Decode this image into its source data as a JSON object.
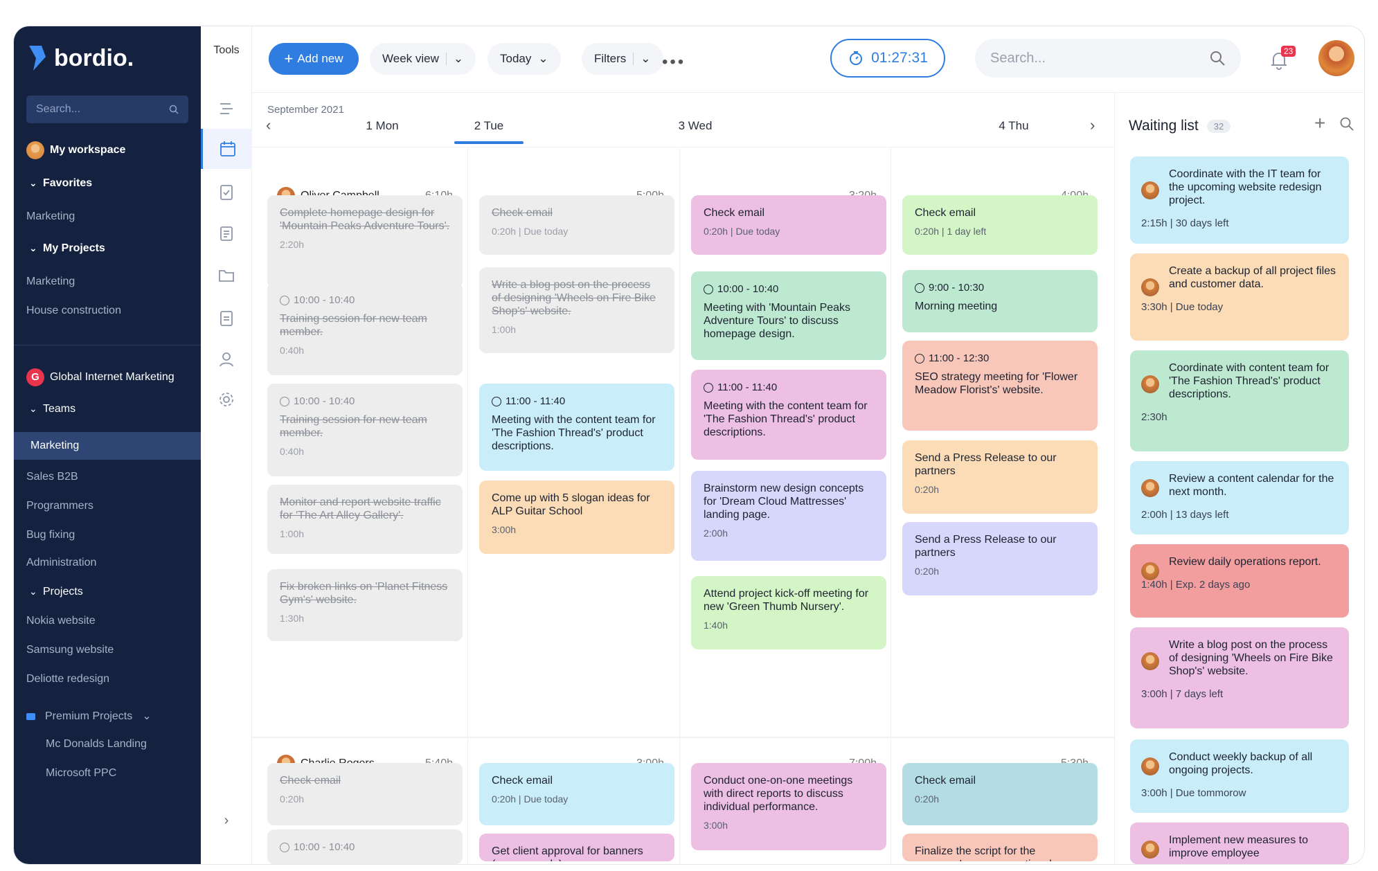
{
  "sidebar": {
    "logo": "bordio.",
    "search_placeholder": "Search...",
    "workspace": "My workspace",
    "favorites": "Favorites",
    "fav_items": [
      "Marketing"
    ],
    "my_projects": "My Projects",
    "project_items": [
      "Marketing",
      "House construction"
    ],
    "org": "Global Internet Marketing",
    "org_letter": "G",
    "teams": "Teams",
    "team_selected": "Marketing",
    "team_items": [
      "Sales B2B",
      "Programmers",
      "Bug fixing",
      "Administration"
    ],
    "projects": "Projects",
    "proj_items": [
      "Nokia website",
      "Samsung website",
      "Deliotte redesign"
    ],
    "premium": "Premium Projects",
    "premium_items": [
      "Mc Donalds Landing",
      "Microsoft PPC"
    ]
  },
  "tools": {
    "title": "Tools"
  },
  "topbar": {
    "add_new": "Add new",
    "view": "Week view",
    "today": "Today",
    "filters": "Filters",
    "timer": "01:27:31",
    "search_placeholder": "Search...",
    "notifications": "23"
  },
  "calendar": {
    "month": "September 2021",
    "days": [
      "1 Mon",
      "2 Tue",
      "3 Wed",
      "4 Thu"
    ],
    "selected_day": "2 Tue",
    "people": [
      {
        "name": "Oliver Campbell",
        "totals": [
          "6:10h",
          "5:00h",
          "3:20h",
          "4:00h"
        ]
      },
      {
        "name": "Charlie Rogers",
        "totals": [
          "5:40h",
          "3:00h",
          "7:00h",
          "5:30h"
        ]
      }
    ],
    "cards": [
      {
        "col": 0,
        "title": "Complete homepage design for 'Mountain Peaks Adventure Tours'.",
        "meta": "2:20h",
        "done": true
      },
      {
        "col": 0,
        "time": "10:00 - 10:40",
        "title": "Training session for new team member.",
        "meta": "0:40h",
        "done": true
      },
      {
        "col": 0,
        "time": "10:00 - 10:40",
        "title": "Training session for new team member.",
        "meta": "0:40h",
        "done": true
      },
      {
        "col": 0,
        "title": "Monitor and report website traffic for 'The Art Alley Gallery'.",
        "meta": "1:00h",
        "done": true
      },
      {
        "col": 0,
        "title": "Fix broken links on 'Planet Fitness Gym's' website.",
        "meta": "1:30h",
        "done": true
      },
      {
        "col": 1,
        "title": "Check email",
        "meta": "0:20h | Due today",
        "done": true
      },
      {
        "col": 1,
        "title": "Write a blog post on the process of designing 'Wheels on Fire Bike Shop's' website.",
        "meta": "1:00h",
        "done": true
      },
      {
        "col": 1,
        "time": "11:00 - 11:40",
        "title": "Meeting with the content team for 'The Fashion Thread's' product descriptions.",
        "color": "#c9eefa"
      },
      {
        "col": 1,
        "title": "Come up with 5 slogan ideas for ALP Guitar School",
        "meta": "3:00h",
        "color": "#fbdcb6"
      },
      {
        "col": 2,
        "title": "Check email",
        "meta": "0:20h | Due today",
        "color": "#ecbfe3"
      },
      {
        "col": 2,
        "time": "10:00 - 10:40",
        "title": "Meeting with 'Mountain Peaks Adventure Tours' to discuss homepage design.",
        "color": "#bde9d1"
      },
      {
        "col": 2,
        "time": "11:00 - 11:40",
        "title": "Meeting with the content team for 'The Fashion Thread's' product descriptions.",
        "color": "#ecbfe3"
      },
      {
        "col": 2,
        "title": "Brainstorm new design concepts for 'Dream Cloud Mattresses' landing page.",
        "meta": "2:00h",
        "color": "#d7d6fb"
      },
      {
        "col": 2,
        "title": "Attend project kick-off meeting for new 'Green Thumb Nursery'.",
        "meta": "1:40h",
        "color": "#d4f5c5"
      },
      {
        "col": 3,
        "title": "Check email",
        "meta": "0:20h | 1 day left",
        "color": "#d4f5c5"
      },
      {
        "col": 3,
        "time": "9:00 - 10:30",
        "title": "Morning meeting",
        "color": "#bde9d1"
      },
      {
        "col": 3,
        "time": "11:00 - 12:30",
        "title": "SEO strategy meeting for 'Flower Meadow Florist's' website.",
        "color": "#f9c7ba"
      },
      {
        "col": 3,
        "title": "Send a Press Release to our partners",
        "meta": "0:20h",
        "color": "#fbdcb6"
      },
      {
        "col": 3,
        "title": "Send a Press Release to our partners",
        "meta": "0:20h",
        "color": "#d7d6fb"
      },
      {
        "col": 0,
        "title": "Check email",
        "meta": "0:20h",
        "done": true,
        "row": 2
      },
      {
        "col": 0,
        "time": "10:00 - 10:40",
        "row": 2,
        "done": true
      },
      {
        "col": 1,
        "title": "Check email",
        "meta": "0:20h | Due today",
        "color": "#c9eefa",
        "row": 2
      },
      {
        "col": 1,
        "title": "Get client approval for banners (summer sale)",
        "color": "#ecbfe3",
        "row": 2
      },
      {
        "col": 2,
        "title": "Conduct one-on-one meetings with direct reports to discuss individual performance.",
        "meta": "3:00h",
        "color": "#ecbfe3",
        "row": 2
      },
      {
        "col": 3,
        "title": "Check email",
        "meta": "0:20h",
        "color": "#b4dde3",
        "row": 2
      },
      {
        "col": 3,
        "title": "Finalize the script for the company's new promotional",
        "color": "#f9c7ba",
        "row": 2
      }
    ]
  },
  "waiting": {
    "title": "Waiting list",
    "count": "32",
    "items": [
      {
        "title": "Coordinate with the IT team for the upcoming website redesign project.",
        "meta": "2:15h | 30 days left",
        "color": "#c9eefa"
      },
      {
        "title": "Create a backup of all project files and customer data.",
        "meta": "3:30h | Due today",
        "color": "#fbdcb6"
      },
      {
        "title": "Coordinate with content team for 'The Fashion Thread's' product descriptions.",
        "meta": "2:30h",
        "color": "#bde9d1"
      },
      {
        "title": "Review a content calendar for the next month.",
        "meta": "2:00h | 13 days left",
        "color": "#c9eefa"
      },
      {
        "title": "Review daily operations report.",
        "meta": "1:40h | Exp. 2 days ago",
        "color": "#f29e9e"
      },
      {
        "title": "Write a blog post on the process of designing 'Wheels on Fire Bike Shop's' website.",
        "meta": "3:00h | 7 days left",
        "color": "#ecbfe3"
      },
      {
        "title": "Conduct weekly backup of all ongoing projects.",
        "meta": "3:00h | Due tommorow",
        "color": "#c9eefa"
      },
      {
        "title": "Implement new measures to improve employee",
        "meta": "",
        "color": "#ecbfe3"
      }
    ]
  }
}
